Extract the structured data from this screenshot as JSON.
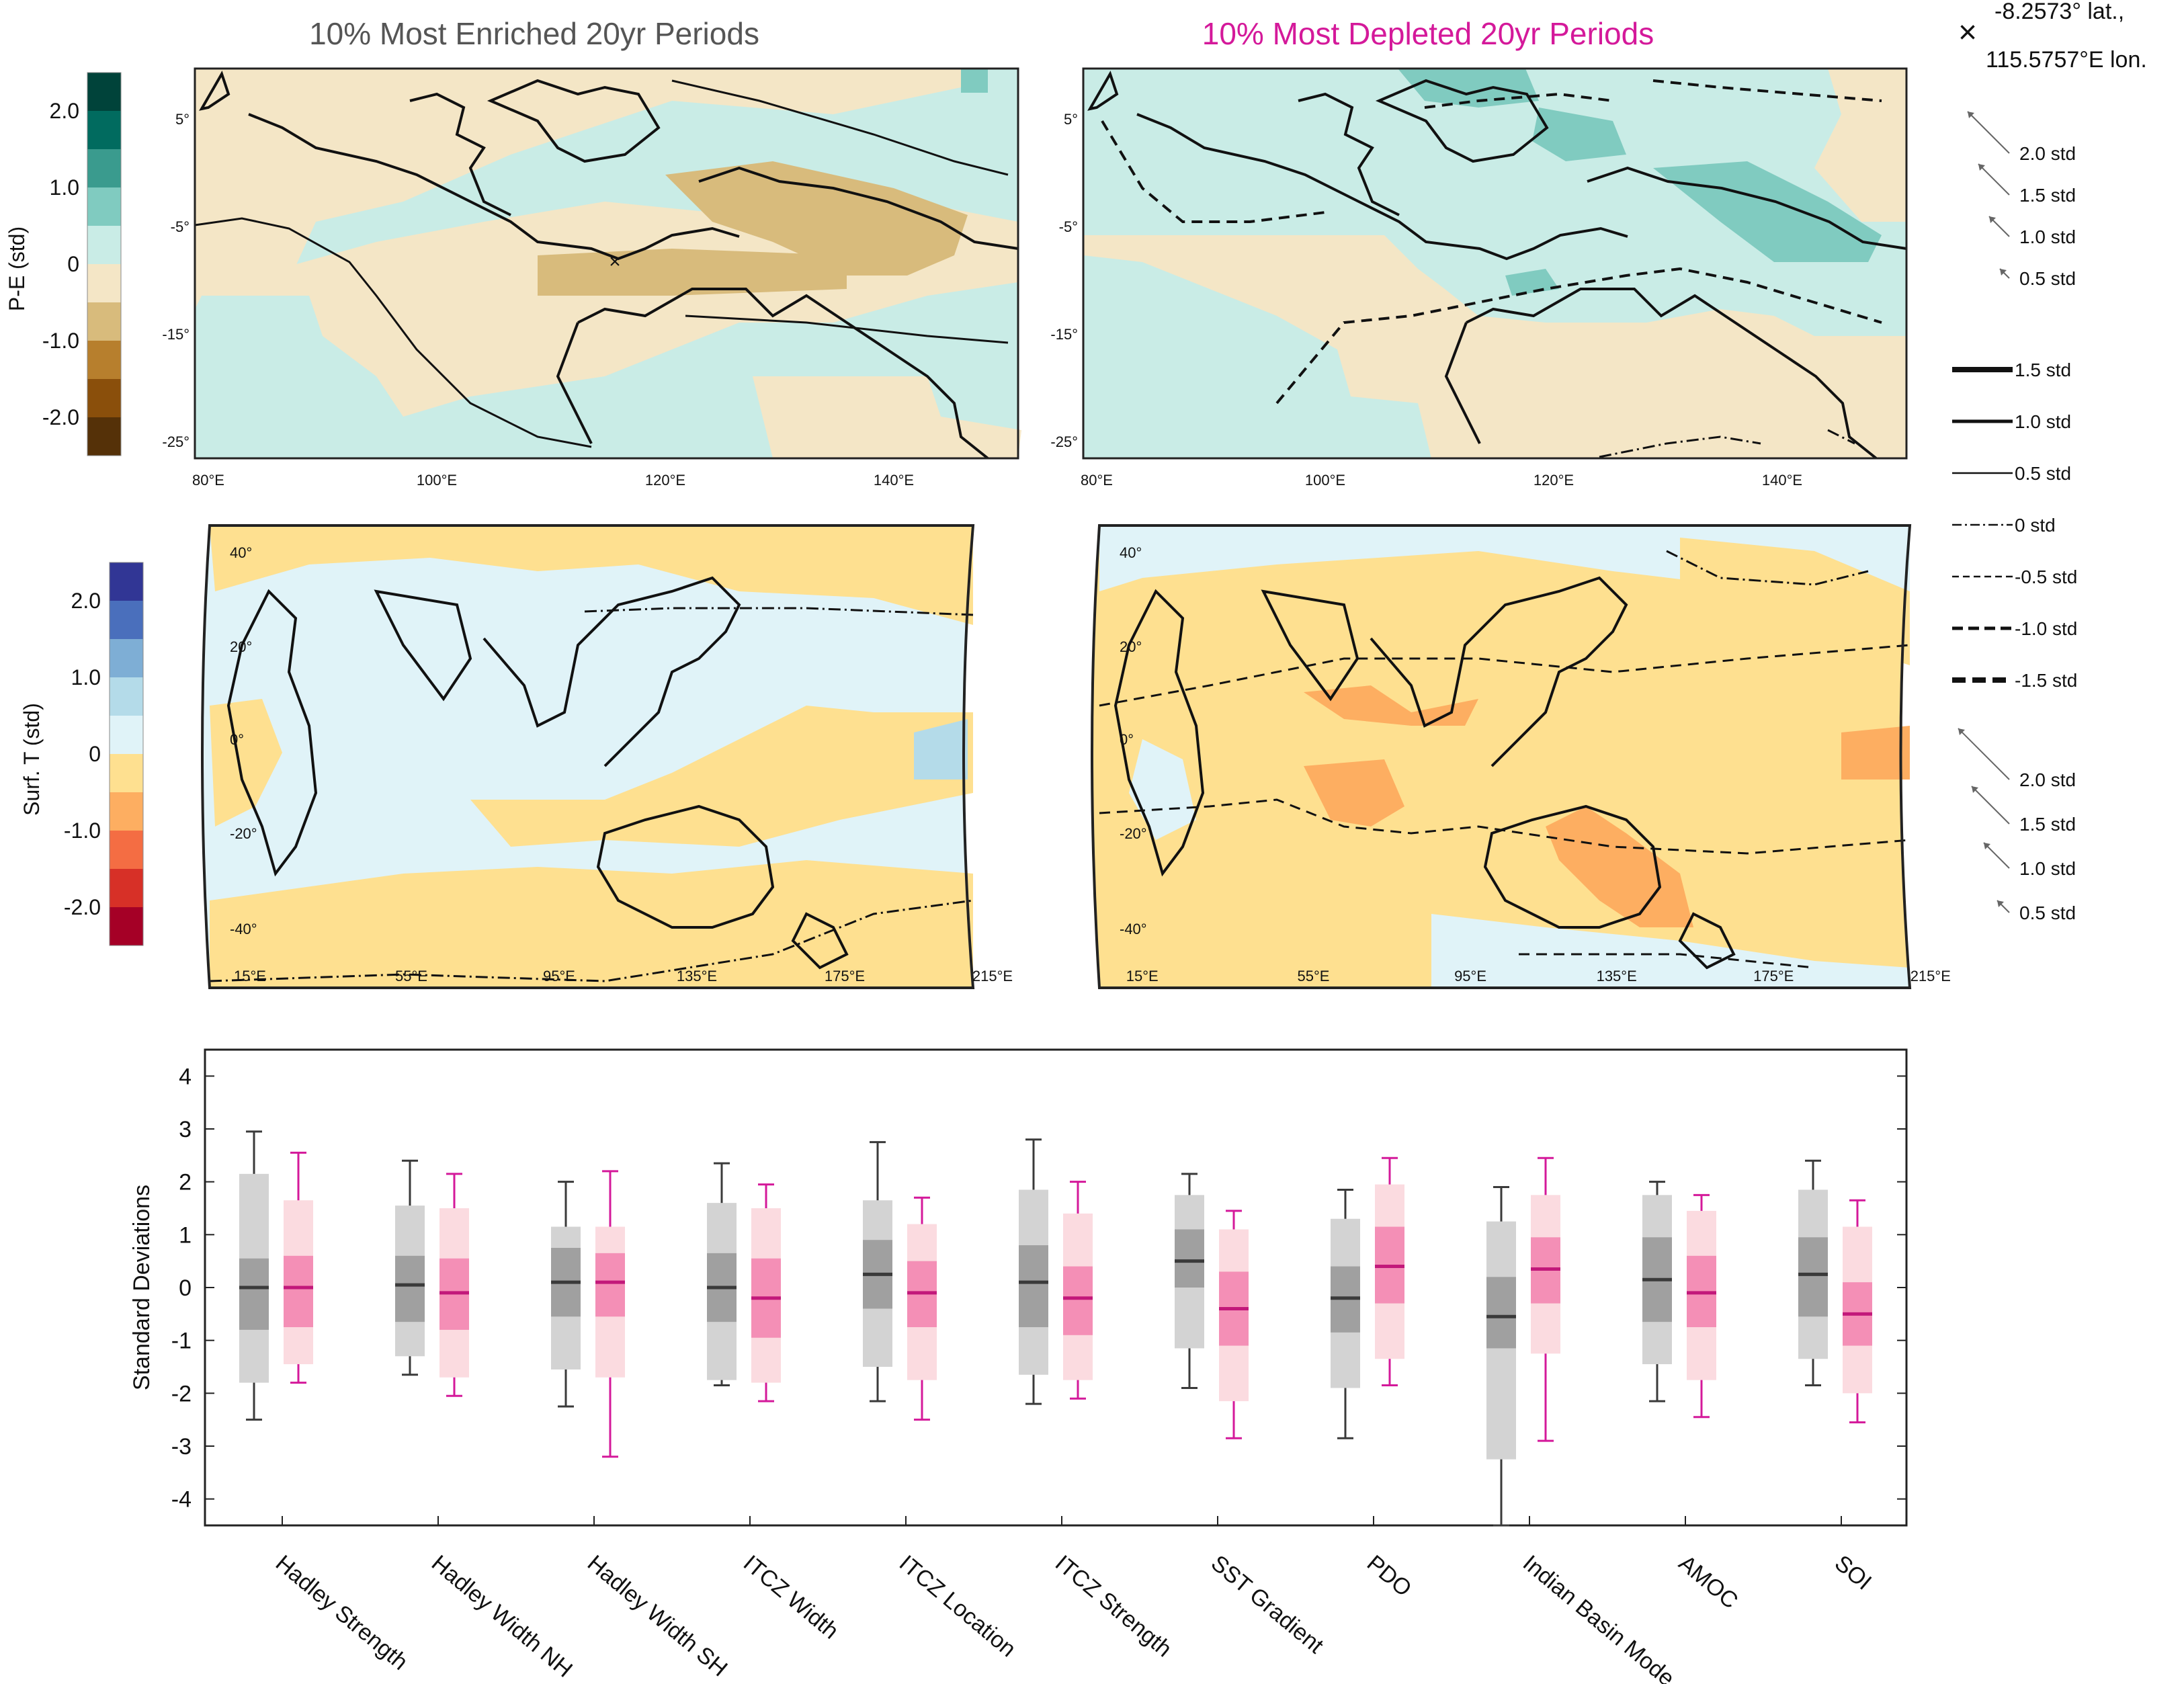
{
  "titles": {
    "enriched": "10% Most Enriched 20yr Periods",
    "depleted": "10% Most Depleted 20yr Periods"
  },
  "colors": {
    "enriched_title": "#555555",
    "depleted_title": "#d4199a",
    "gray_box_outer": "#d3d3d3",
    "gray_box_inner": "#a0a0a0",
    "gray_median": "#3a3a3a",
    "pink_box_outer": "#fbdbe0",
    "pink_box_inner": "#f48fb6",
    "pink_median": "#c2187a",
    "pink_whisker": "#d4199a",
    "gray_whisker": "#3a3a3a"
  },
  "location_marker": {
    "symbol": "×",
    "lat_text": "-8.2573° lat.,",
    "lon_text": "115.5757°E lon."
  },
  "pe_colorbar": {
    "label": "P-E (std)",
    "ticks": [
      "2.0",
      "1.0",
      "0",
      "-1.0",
      "-2.0"
    ],
    "colors": [
      "#00433a",
      "#016b5f",
      "#3a9b8e",
      "#80cbc0",
      "#c9ece6",
      "#f4e6c6",
      "#d8bb7c",
      "#b77f2d",
      "#8a4f0b",
      "#553108"
    ]
  },
  "st_colorbar": {
    "label": "Surf. T (std)",
    "ticks": [
      "2.0",
      "1.0",
      "0",
      "-1.0",
      "-2.0"
    ],
    "colors": [
      "#313695",
      "#4a6fbc",
      "#7eaed5",
      "#b4dbe9",
      "#e0f3f8",
      "#fee090",
      "#fdae61",
      "#f46d43",
      "#d73027",
      "#a50026"
    ]
  },
  "pe_maps": {
    "lat_ticks": [
      "5°",
      "-5°",
      "-15°",
      "-25°"
    ],
    "lon_ticks": [
      "80°E",
      "100°E",
      "120°E",
      "140°E"
    ]
  },
  "st_maps": {
    "lat_ticks": [
      "40°",
      "20°",
      "0°",
      "-20°",
      "-40°"
    ],
    "lon_ticks": [
      "15°E",
      "55°E",
      "95°E",
      "135°E",
      "175°E",
      "215°E"
    ]
  },
  "vector_legends": {
    "top": [
      "2.0 std",
      "1.5 std",
      "1.0 std",
      "0.5 std"
    ],
    "bottom": [
      "2.0 std",
      "1.5 std",
      "1.0 std",
      "0.5 std"
    ]
  },
  "contour_legend": [
    "1.5 std",
    "1.0 std",
    "0.5 std",
    "0 std",
    "-0.5 std",
    "-1.0 std",
    "-1.5 std"
  ],
  "chart_data": {
    "type": "box",
    "ylabel": "Standard Deviations",
    "ylim": [
      -4.5,
      4.5
    ],
    "yticks": [
      "4",
      "3",
      "2",
      "1",
      "0",
      "-1",
      "-2",
      "-3",
      "-4"
    ],
    "categories": [
      "Hadley Strength",
      "Hadley Width NH",
      "Hadley Width SH",
      "ITCZ Width",
      "ITCZ Location",
      "ITCZ Strength",
      "SST Gradient",
      "PDO",
      "Indian Basin Mode",
      "AMOC",
      "SOI"
    ],
    "series": [
      {
        "group": "enriched",
        "stats": [
          {
            "wmin": -2.5,
            "p10": -1.8,
            "q1": -0.8,
            "median": 0.0,
            "q3": 0.55,
            "p90": 2.15,
            "wmax": 2.95
          },
          {
            "wmin": -1.65,
            "p10": -1.3,
            "q1": -0.65,
            "median": 0.05,
            "q3": 0.6,
            "p90": 1.55,
            "wmax": 2.4
          },
          {
            "wmin": -2.25,
            "p10": -1.55,
            "q1": -0.55,
            "median": 0.1,
            "q3": 0.75,
            "p90": 1.15,
            "wmax": 2.0
          },
          {
            "wmin": -1.85,
            "p10": -1.75,
            "q1": -0.65,
            "median": 0.0,
            "q3": 0.65,
            "p90": 1.6,
            "wmax": 2.35
          },
          {
            "wmin": -2.15,
            "p10": -1.5,
            "q1": -0.4,
            "median": 0.25,
            "q3": 0.9,
            "p90": 1.65,
            "wmax": 2.75
          },
          {
            "wmin": -2.2,
            "p10": -1.65,
            "q1": -0.75,
            "median": 0.1,
            "q3": 0.8,
            "p90": 1.85,
            "wmax": 2.8
          },
          {
            "wmin": -1.9,
            "p10": -1.15,
            "q1": -0.0,
            "median": 0.5,
            "q3": 1.1,
            "p90": 1.75,
            "wmax": 2.15
          },
          {
            "wmin": -2.85,
            "p10": -1.9,
            "q1": -0.85,
            "median": -0.2,
            "q3": 0.4,
            "p90": 1.3,
            "wmax": 1.85
          },
          {
            "wmin": -4.5,
            "p10": -3.25,
            "q1": -1.15,
            "median": -0.55,
            "q3": 0.2,
            "p90": 1.25,
            "wmax": 1.9
          },
          {
            "wmin": -2.15,
            "p10": -1.45,
            "q1": -0.65,
            "median": 0.15,
            "q3": 0.95,
            "p90": 1.75,
            "wmax": 2.0
          },
          {
            "wmin": -1.85,
            "p10": -1.35,
            "q1": -0.55,
            "median": 0.25,
            "q3": 0.95,
            "p90": 1.85,
            "wmax": 2.4
          }
        ]
      },
      {
        "group": "depleted",
        "stats": [
          {
            "wmin": -1.8,
            "p10": -1.45,
            "q1": -0.75,
            "median": 0.0,
            "q3": 0.6,
            "p90": 1.65,
            "wmax": 2.55
          },
          {
            "wmin": -2.05,
            "p10": -1.7,
            "q1": -0.8,
            "median": -0.1,
            "q3": 0.55,
            "p90": 1.5,
            "wmax": 2.15
          },
          {
            "wmin": -3.2,
            "p10": -1.7,
            "q1": -0.55,
            "median": 0.1,
            "q3": 0.65,
            "p90": 1.15,
            "wmax": 2.2
          },
          {
            "wmin": -2.15,
            "p10": -1.8,
            "q1": -0.95,
            "median": -0.2,
            "q3": 0.55,
            "p90": 1.5,
            "wmax": 1.95
          },
          {
            "wmin": -2.5,
            "p10": -1.75,
            "q1": -0.75,
            "median": -0.1,
            "q3": 0.5,
            "p90": 1.2,
            "wmax": 1.7
          },
          {
            "wmin": -2.1,
            "p10": -1.75,
            "q1": -0.9,
            "median": -0.2,
            "q3": 0.4,
            "p90": 1.4,
            "wmax": 2.0
          },
          {
            "wmin": -2.85,
            "p10": -2.15,
            "q1": -1.1,
            "median": -0.4,
            "q3": 0.3,
            "p90": 1.1,
            "wmax": 1.45
          },
          {
            "wmin": -1.85,
            "p10": -1.35,
            "q1": -0.3,
            "median": 0.4,
            "q3": 1.15,
            "p90": 1.95,
            "wmax": 2.45
          },
          {
            "wmin": -2.9,
            "p10": -1.25,
            "q1": -0.3,
            "median": 0.35,
            "q3": 0.95,
            "p90": 1.75,
            "wmax": 2.45
          },
          {
            "wmin": -2.45,
            "p10": -1.75,
            "q1": -0.75,
            "median": -0.1,
            "q3": 0.6,
            "p90": 1.45,
            "wmax": 1.75
          },
          {
            "wmin": -2.55,
            "p10": -2.0,
            "q1": -1.1,
            "median": -0.5,
            "q3": 0.1,
            "p90": 1.15,
            "wmax": 1.65
          }
        ]
      }
    ]
  }
}
